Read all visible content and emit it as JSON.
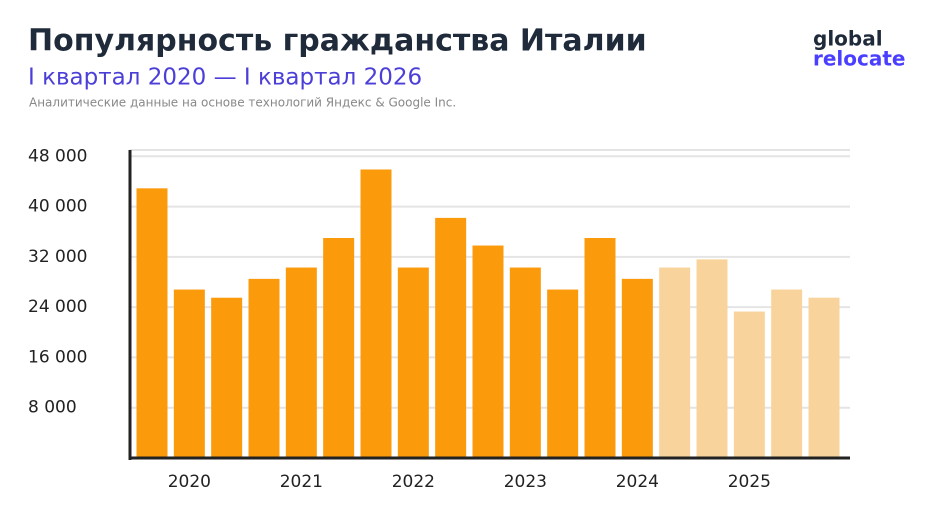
{
  "chart_data": {
    "type": "bar",
    "title": "Популярность гражданства Италии",
    "subtitle": "I квартал 2020 — I квартал 2026",
    "source": "Аналитические данные на основе технологий Яндекс & Google Inc.",
    "logo": [
      "global",
      "relocate"
    ],
    "categories": [
      null,
      "2020",
      null,
      null,
      "2021",
      null,
      null,
      "2022",
      null,
      null,
      "2023",
      null,
      null,
      "2024",
      null,
      null,
      "2025",
      null,
      null
    ],
    "values": [
      42900,
      26800,
      25500,
      28500,
      30300,
      35000,
      45900,
      30300,
      38200,
      33800,
      30300,
      26800,
      35000,
      28500,
      30300,
      31600,
      23300,
      26800,
      25500
    ],
    "colors": [
      "#fb9a0b",
      "#fb9a0b",
      "#fb9a0b",
      "#fb9a0b",
      "#fb9a0b",
      "#fb9a0b",
      "#fb9a0b",
      "#fb9a0b",
      "#fb9a0b",
      "#fb9a0b",
      "#fb9a0b",
      "#fb9a0b",
      "#fb9a0b",
      "#fb9a0b",
      "#f8d49c",
      "#f8d49c",
      "#f8d49c",
      "#f8d49c",
      "#f8d49c"
    ],
    "ylim": [
      0,
      49000
    ],
    "yticks": [
      {
        "value": 8000,
        "label": "8 000"
      },
      {
        "value": 16000,
        "label": "16 000"
      },
      {
        "value": 24000,
        "label": "24 000"
      },
      {
        "value": 32000,
        "label": "32 000"
      },
      {
        "value": 40000,
        "label": "40 000"
      },
      {
        "value": 48000,
        "label": "48 000"
      }
    ],
    "grid": true
  }
}
